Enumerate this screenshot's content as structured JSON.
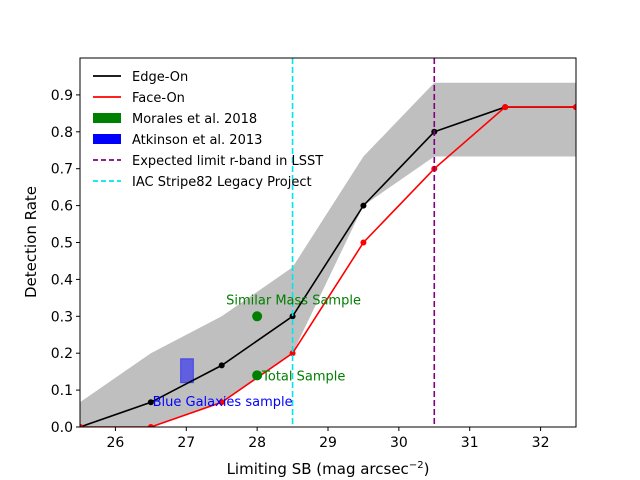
{
  "chart_data": {
    "type": "line",
    "xlabel": "Limiting SB (mag arcsec",
    "xlabel_sup": "−2",
    "xlabel_end": ")",
    "ylabel": "Detection Rate",
    "xlim": [
      25.5,
      32.5
    ],
    "ylim": [
      0,
      1.0
    ],
    "xticks": [
      26,
      27,
      28,
      29,
      30,
      31,
      32
    ],
    "yticks": [
      0.0,
      0.1,
      0.2,
      0.3,
      0.4,
      0.5,
      0.6,
      0.7,
      0.8,
      0.9
    ],
    "series": [
      {
        "name": "Edge-On",
        "color": "#000000",
        "x": [
          25.5,
          26.5,
          27.5,
          28.5,
          29.5,
          30.5,
          31.5,
          32.5
        ],
        "values": [
          0.0,
          0.067,
          0.167,
          0.3,
          0.6,
          0.8,
          0.867,
          0.867
        ]
      },
      {
        "name": "Face-On",
        "color": "#ff0000",
        "x": [
          25.5,
          26.5,
          27.5,
          28.5,
          29.5,
          30.5,
          31.5,
          32.5
        ],
        "values": [
          0.0,
          0.0,
          0.067,
          0.2,
          0.5,
          0.7,
          0.867,
          0.867
        ]
      }
    ],
    "band": {
      "color": "#bfbfbf",
      "x": [
        25.5,
        26.5,
        27.5,
        28.5,
        29.5,
        30.5,
        31.5,
        32.5
      ],
      "upper": [
        0.067,
        0.2,
        0.3,
        0.433,
        0.733,
        0.933,
        0.933,
        0.933
      ],
      "lower": [
        0.0,
        0.0,
        0.067,
        0.2,
        0.6,
        0.733,
        0.733,
        0.733
      ]
    },
    "points": [
      {
        "label": "Similar Mass Sample",
        "x": 28.0,
        "y": 0.3,
        "color": "#008000"
      },
      {
        "label": "Total Sample",
        "x": 28.0,
        "y": 0.14,
        "color": "#008000"
      }
    ],
    "rect": {
      "label": "Blue Galaxies sample",
      "x0": 26.92,
      "x1": 27.1,
      "y0": 0.12,
      "y1": 0.185,
      "color": "#0000ff"
    },
    "vlines": [
      {
        "name": "Expected limit r-band in LSST",
        "x": 30.5,
        "color": "#800080"
      },
      {
        "name": "IAC Stripe82 Legacy Project",
        "x": 28.5,
        "color": "#00e5ee"
      }
    ],
    "legend": [
      {
        "label": "Edge-On",
        "kind": "line",
        "color": "#000000"
      },
      {
        "label": "Face-On",
        "kind": "line",
        "color": "#ff0000"
      },
      {
        "label": "Morales et al. 2018",
        "kind": "patch",
        "color": "#008000"
      },
      {
        "label": "Atkinson et al. 2013",
        "kind": "patch",
        "color": "#0000ff"
      },
      {
        "label": "Expected limit r-band in LSST",
        "kind": "dash",
        "color": "#800080"
      },
      {
        "label": "IAC Stripe82 Legacy Project",
        "kind": "dash",
        "color": "#00e5ee"
      }
    ],
    "legend_position": "top-left"
  }
}
